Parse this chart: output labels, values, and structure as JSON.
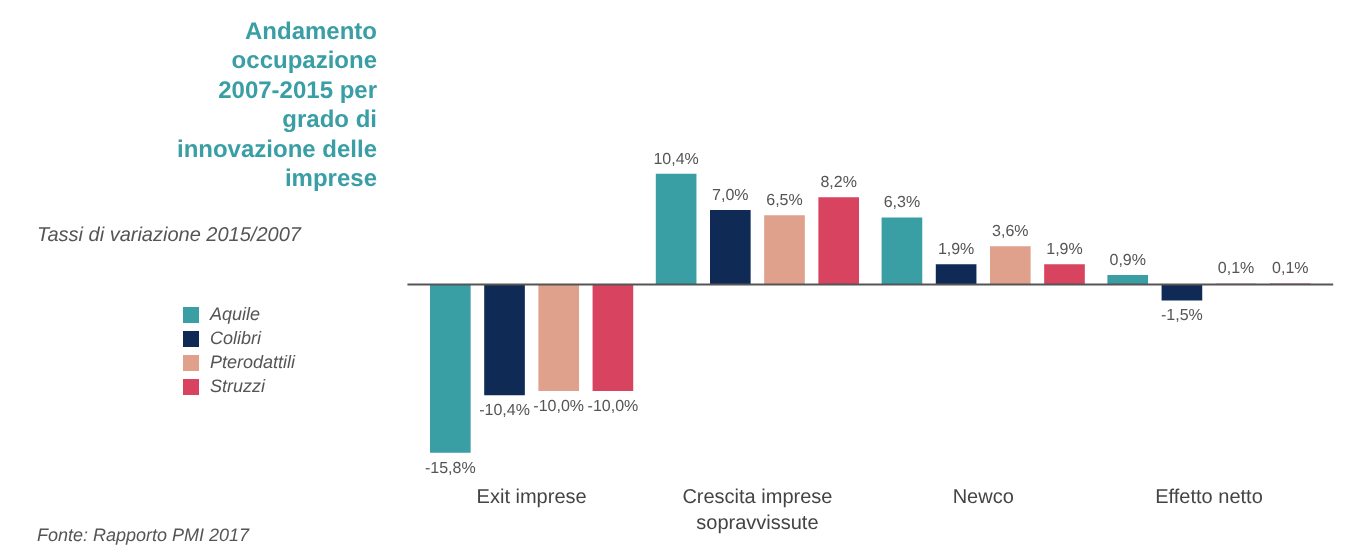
{
  "chart_data": {
    "type": "bar",
    "title": "Andamento occupazione 2007-2015 per grado di innovazione delle imprese",
    "subtitle": "Tassi di variazione 2015/2007",
    "categories": [
      "Exit imprese",
      "Crescita imprese sopravvissute",
      "Newco",
      "Effetto netto"
    ],
    "series": [
      {
        "name": "Aquile",
        "color": "#3a9ea5",
        "values": [
          -15.8,
          10.4,
          6.3,
          0.9
        ],
        "value_labels": [
          "-15,8%",
          "10,4%",
          "6,3%",
          "0,9%"
        ]
      },
      {
        "name": "Colibri",
        "color": "#0f2a55",
        "values": [
          -10.4,
          7.0,
          1.9,
          -1.5
        ],
        "value_labels": [
          "-10,4%",
          "7,0%",
          "1,9%",
          "-1,5%"
        ]
      },
      {
        "name": "Pterodattili",
        "color": "#dfa08c",
        "values": [
          -10.0,
          6.5,
          3.6,
          0.1
        ],
        "value_labels": [
          "-10,0%",
          "6,5%",
          "3,6%",
          "0,1%"
        ]
      },
      {
        "name": "Struzzi",
        "color": "#d8435f",
        "values": [
          -10.0,
          8.2,
          1.9,
          0.1
        ],
        "value_labels": [
          "-10,0%",
          "8,2%",
          "1,9%",
          "0,1%"
        ]
      }
    ],
    "legend": "left",
    "grid": false,
    "annotations": [
      "Fonte: Rapporto PMI 2017"
    ]
  }
}
